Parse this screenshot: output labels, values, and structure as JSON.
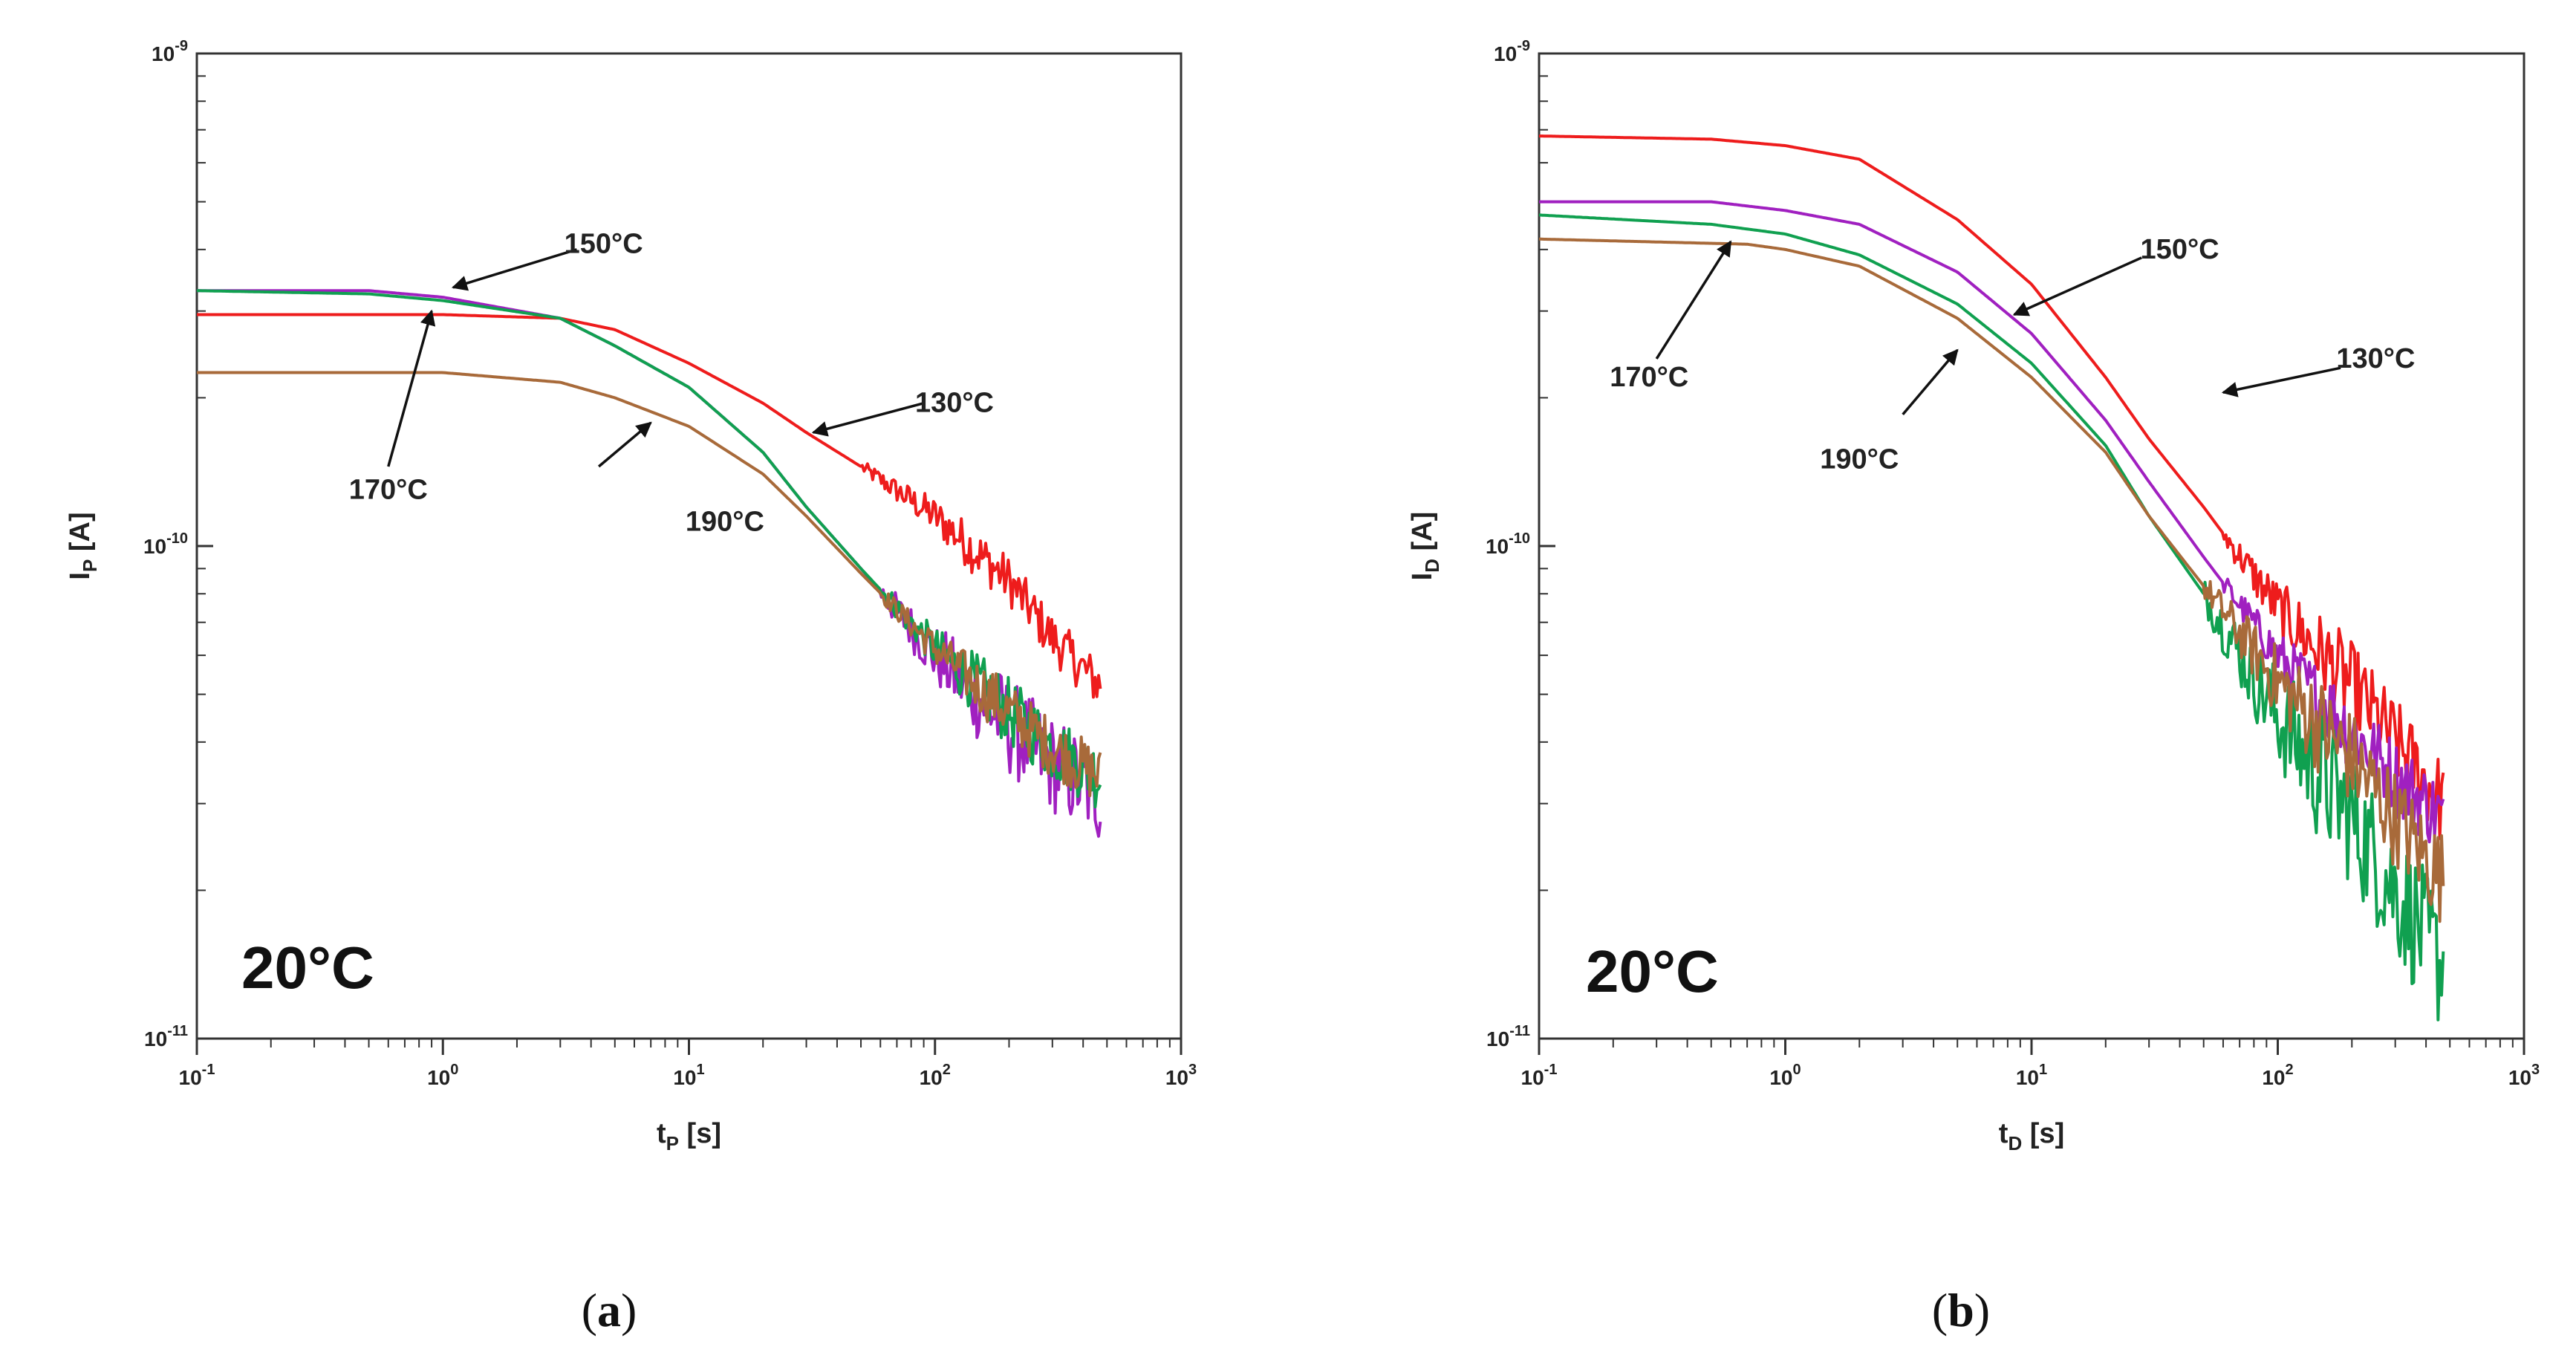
{
  "chart_data": [
    {
      "type": "line",
      "panel_label": "a",
      "xlabel": {
        "main": "t",
        "sub": "P",
        "unit": " [s]"
      },
      "ylabel": {
        "main": "I",
        "sub": "P",
        "unit": " [A]"
      },
      "xscale": "log",
      "yscale": "log",
      "xlim": [
        0.1,
        1000
      ],
      "ylim": [
        1e-11,
        1e-09
      ],
      "x_ticks": [
        {
          "base": "10",
          "exp": "-1"
        },
        {
          "base": "10",
          "exp": "0"
        },
        {
          "base": "10",
          "exp": "1"
        },
        {
          "base": "10",
          "exp": "2"
        },
        {
          "base": "10",
          "exp": "3"
        }
      ],
      "y_ticks": [
        {
          "base": "10",
          "exp": "-11"
        },
        {
          "base": "10",
          "exp": "-10"
        },
        {
          "base": "10",
          "exp": "-9"
        }
      ],
      "temperature_label": "20°C",
      "series": [
        {
          "name": "130°C",
          "color": "#ee1c1c",
          "noise": 0.05,
          "noise_from": 50,
          "points": [
            [
              0.1,
              2.95e-10
            ],
            [
              1,
              2.95e-10
            ],
            [
              3,
              2.9e-10
            ],
            [
              5,
              2.75e-10
            ],
            [
              10,
              2.35e-10
            ],
            [
              20,
              1.95e-10
            ],
            [
              30,
              1.7e-10
            ],
            [
              50,
              1.45e-10
            ],
            [
              100,
              1.15e-10
            ],
            [
              200,
              8.5e-11
            ],
            [
              300,
              6.5e-11
            ],
            [
              470,
              5.2e-11
            ]
          ]
        },
        {
          "name": "150°C",
          "color": "#a020c0",
          "noise": 0.1,
          "noise_from": 60,
          "points": [
            [
              0.1,
              3.3e-10
            ],
            [
              0.5,
              3.3e-10
            ],
            [
              1,
              3.2e-10
            ],
            [
              3,
              2.9e-10
            ],
            [
              5,
              2.55e-10
            ],
            [
              10,
              2.1e-10
            ],
            [
              20,
              1.55e-10
            ],
            [
              30,
              1.2e-10
            ],
            [
              50,
              9e-11
            ],
            [
              100,
              6e-11
            ],
            [
              200,
              4.3e-11
            ],
            [
              300,
              3.6e-11
            ],
            [
              470,
              3.1e-11
            ]
          ]
        },
        {
          "name": "170°C",
          "color": "#10a050",
          "noise": 0.07,
          "noise_from": 60,
          "points": [
            [
              0.1,
              3.3e-10
            ],
            [
              0.5,
              3.25e-10
            ],
            [
              1,
              3.15e-10
            ],
            [
              3,
              2.9e-10
            ],
            [
              5,
              2.55e-10
            ],
            [
              10,
              2.1e-10
            ],
            [
              20,
              1.55e-10
            ],
            [
              30,
              1.2e-10
            ],
            [
              50,
              9e-11
            ],
            [
              100,
              6.2e-11
            ],
            [
              200,
              4.6e-11
            ],
            [
              300,
              3.9e-11
            ],
            [
              470,
              3.4e-11
            ]
          ]
        },
        {
          "name": "190°C",
          "color": "#a86a3a",
          "noise": 0.06,
          "noise_from": 60,
          "points": [
            [
              0.1,
              2.25e-10
            ],
            [
              1,
              2.25e-10
            ],
            [
              3,
              2.15e-10
            ],
            [
              5,
              2e-10
            ],
            [
              10,
              1.75e-10
            ],
            [
              20,
              1.4e-10
            ],
            [
              30,
              1.15e-10
            ],
            [
              50,
              8.8e-11
            ],
            [
              100,
              6.2e-11
            ],
            [
              200,
              4.6e-11
            ],
            [
              300,
              3.9e-11
            ],
            [
              470,
              3.4e-11
            ]
          ]
        }
      ],
      "annotations": [
        {
          "text": "150°C",
          "text_at": [
            4.5,
            4.1e-10
          ],
          "arrow_from": [
            3.5,
            4e-10
          ],
          "arrow_to": [
            1.1,
            3.35e-10
          ]
        },
        {
          "text": "170°C",
          "text_at": [
            0.6,
            1.3e-10
          ],
          "arrow_from": [
            0.6,
            1.45e-10
          ],
          "arrow_to": [
            0.9,
            3e-10
          ]
        },
        {
          "text": "130°C",
          "text_at": [
            120,
            1.95e-10
          ],
          "arrow_from": [
            90,
            1.95e-10
          ],
          "arrow_to": [
            32,
            1.7e-10
          ]
        },
        {
          "text": "190°C",
          "text_at": [
            14,
            1.12e-10
          ],
          "arrow_from": [
            4.3,
            1.45e-10
          ],
          "arrow_to": [
            7.0,
            1.78e-10
          ]
        }
      ]
    },
    {
      "type": "line",
      "panel_label": "b",
      "xlabel": {
        "main": "t",
        "sub": "D",
        "unit": " [s]"
      },
      "ylabel": {
        "main": "I",
        "sub": "D",
        "unit": " [A]"
      },
      "xscale": "log",
      "yscale": "log",
      "xlim": [
        0.1,
        1000
      ],
      "ylim": [
        1e-11,
        1e-09
      ],
      "x_ticks": [
        {
          "base": "10",
          "exp": "-1"
        },
        {
          "base": "10",
          "exp": "0"
        },
        {
          "base": "10",
          "exp": "1"
        },
        {
          "base": "10",
          "exp": "2"
        },
        {
          "base": "10",
          "exp": "3"
        }
      ],
      "y_ticks": [
        {
          "base": "10",
          "exp": "-11"
        },
        {
          "base": "10",
          "exp": "-10"
        },
        {
          "base": "10",
          "exp": "-9"
        }
      ],
      "temperature_label": "20°C",
      "series": [
        {
          "name": "130°C",
          "color": "#ee1c1c",
          "noise": 0.09,
          "noise_from": 60,
          "points": [
            [
              0.1,
              6.8e-10
            ],
            [
              0.5,
              6.7e-10
            ],
            [
              1,
              6.5e-10
            ],
            [
              2,
              6.1e-10
            ],
            [
              5,
              4.6e-10
            ],
            [
              10,
              3.4e-10
            ],
            [
              20,
              2.2e-10
            ],
            [
              30,
              1.65e-10
            ],
            [
              50,
              1.2e-10
            ],
            [
              100,
              7.5e-11
            ],
            [
              200,
              5.2e-11
            ],
            [
              300,
              4e-11
            ],
            [
              470,
              3e-11
            ]
          ]
        },
        {
          "name": "150°C",
          "color": "#a020c0",
          "noise": 0.08,
          "noise_from": 60,
          "points": [
            [
              0.1,
              5e-10
            ],
            [
              0.5,
              5e-10
            ],
            [
              1,
              4.8e-10
            ],
            [
              2,
              4.5e-10
            ],
            [
              5,
              3.6e-10
            ],
            [
              10,
              2.7e-10
            ],
            [
              20,
              1.8e-10
            ],
            [
              30,
              1.35e-10
            ],
            [
              50,
              9.5e-11
            ],
            [
              100,
              6e-11
            ],
            [
              200,
              4.2e-11
            ],
            [
              300,
              3.4e-11
            ],
            [
              470,
              2.8e-11
            ]
          ]
        },
        {
          "name": "170°C",
          "color": "#10a050",
          "noise": 0.14,
          "noise_from": 50,
          "points": [
            [
              0.1,
              4.7e-10
            ],
            [
              0.5,
              4.5e-10
            ],
            [
              1,
              4.3e-10
            ],
            [
              2,
              3.9e-10
            ],
            [
              5,
              3.1e-10
            ],
            [
              10,
              2.35e-10
            ],
            [
              20,
              1.6e-10
            ],
            [
              30,
              1.15e-10
            ],
            [
              50,
              8e-11
            ],
            [
              100,
              4.5e-11
            ],
            [
              200,
              2.8e-11
            ],
            [
              300,
              2e-11
            ],
            [
              470,
              1.4e-11
            ]
          ]
        },
        {
          "name": "190°C",
          "color": "#a86a3a",
          "noise": 0.1,
          "noise_from": 50,
          "points": [
            [
              0.1,
              4.2e-10
            ],
            [
              0.7,
              4.1e-10
            ],
            [
              1,
              4e-10
            ],
            [
              2,
              3.7e-10
            ],
            [
              5,
              2.9e-10
            ],
            [
              10,
              2.2e-10
            ],
            [
              20,
              1.55e-10
            ],
            [
              30,
              1.15e-10
            ],
            [
              50,
              8.3e-11
            ],
            [
              100,
              5.3e-11
            ],
            [
              200,
              3.7e-11
            ],
            [
              300,
              2.8e-11
            ],
            [
              470,
              2.1e-11
            ]
          ]
        }
      ],
      "annotations": [
        {
          "text": "150°C",
          "text_at": [
            40,
            4e-10
          ],
          "arrow_from": [
            28,
            3.85e-10
          ],
          "arrow_to": [
            8.5,
            2.95e-10
          ]
        },
        {
          "text": "170°C",
          "text_at": [
            0.28,
            2.2e-10
          ],
          "arrow_from": [
            0.3,
            2.4e-10
          ],
          "arrow_to": [
            0.6,
            4.15e-10
          ]
        },
        {
          "text": "130°C",
          "text_at": [
            250,
            2.4e-10
          ],
          "arrow_from": [
            180,
            2.3e-10
          ],
          "arrow_to": [
            60,
            2.05e-10
          ]
        },
        {
          "text": "190°C",
          "text_at": [
            2.0,
            1.5e-10
          ],
          "arrow_from": [
            3.0,
            1.85e-10
          ],
          "arrow_to": [
            5.0,
            2.5e-10
          ]
        }
      ]
    }
  ]
}
